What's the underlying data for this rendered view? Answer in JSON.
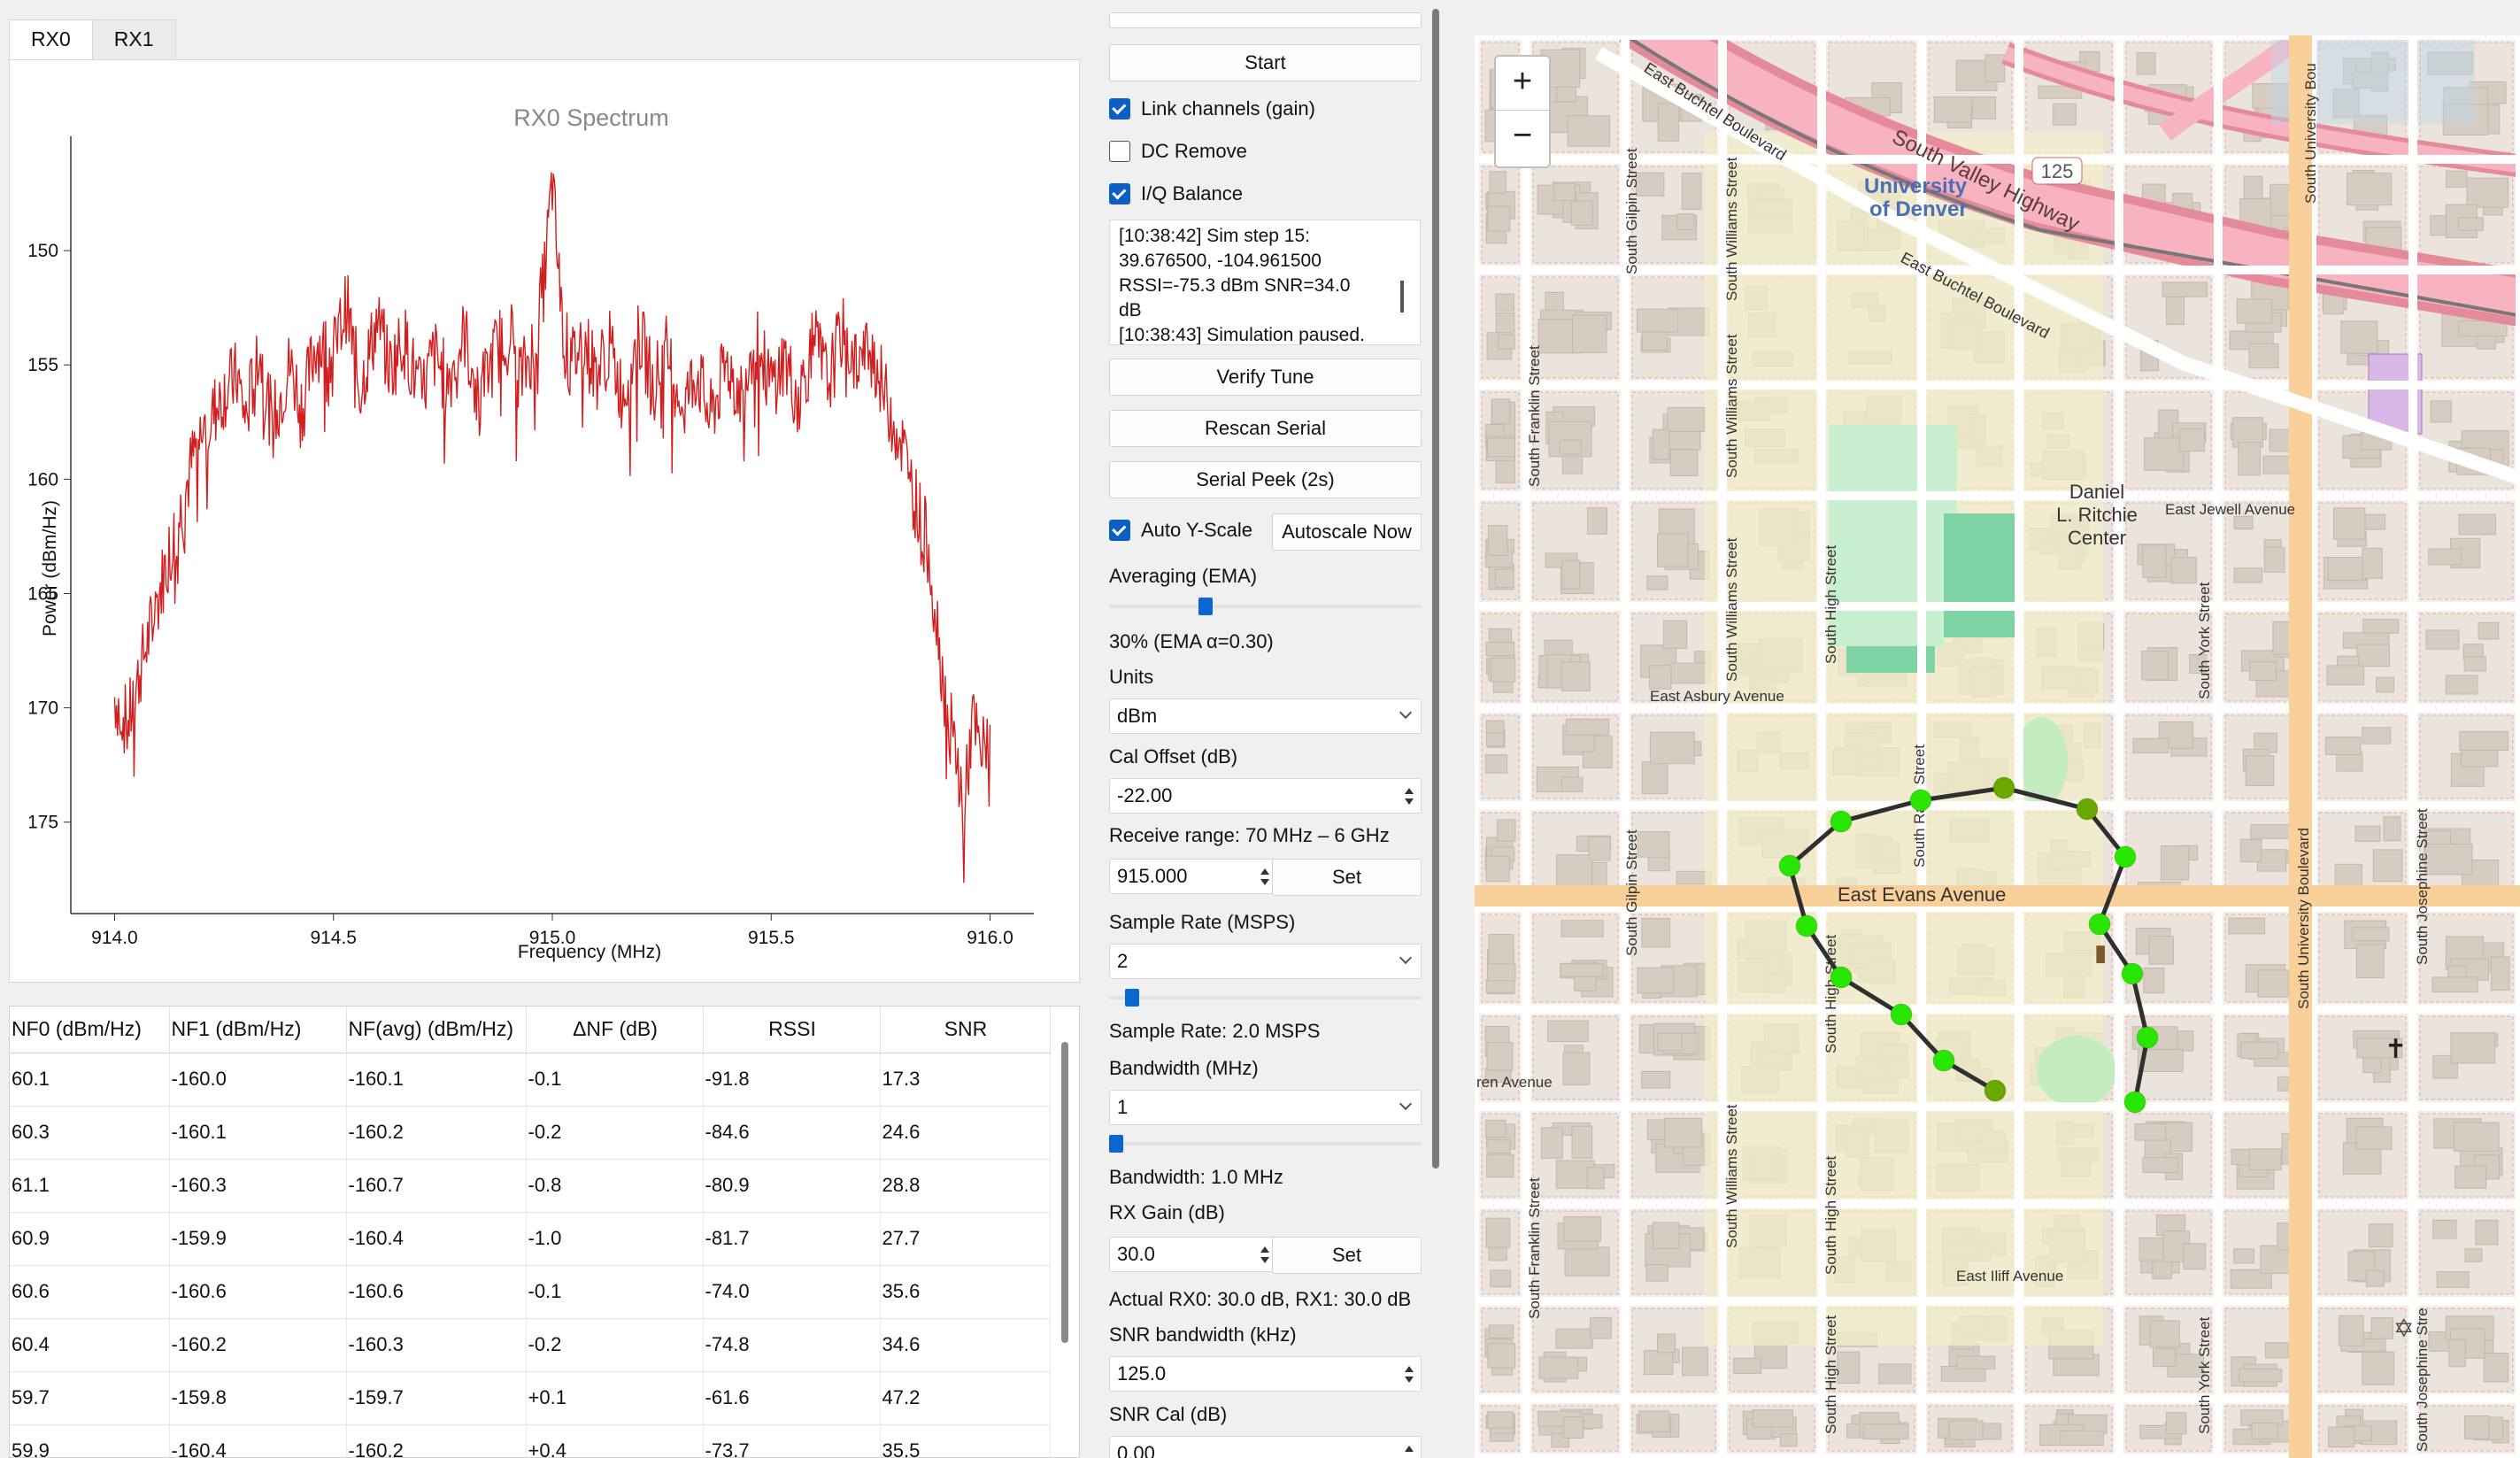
{
  "tabs": [
    "RX0",
    "RX1"
  ],
  "chart_data": {
    "type": "line",
    "title": "RX0 Spectrum",
    "xlabel": "Frequency (MHz)",
    "ylabel": "Power (dBm/Hz)",
    "xlim": [
      913.9,
      916.1
    ],
    "ylim": [
      -179,
      -145
    ],
    "xticks": [
      "914.0",
      "914.5",
      "915.0",
      "915.5",
      "916.0"
    ],
    "yticks": [
      "-150",
      "-155",
      "-160",
      "-165",
      "-170",
      "-175"
    ],
    "series": [
      {
        "color": "#d11f1f",
        "x": [
          914.0,
          914.03,
          914.06,
          914.09,
          914.12,
          914.15,
          914.18,
          914.2,
          914.22,
          914.25,
          914.28,
          914.3,
          914.33,
          914.36,
          914.4,
          914.43,
          914.46,
          914.5,
          914.53,
          914.56,
          914.6,
          914.63,
          914.66,
          914.7,
          914.73,
          914.76,
          914.8,
          914.83,
          914.86,
          914.9,
          914.93,
          914.96,
          914.98,
          915.0,
          915.02,
          915.04,
          915.07,
          915.1,
          915.13,
          915.16,
          915.2,
          915.23,
          915.26,
          915.3,
          915.33,
          915.36,
          915.4,
          915.43,
          915.46,
          915.5,
          915.53,
          915.56,
          915.6,
          915.63,
          915.66,
          915.7,
          915.73,
          915.76,
          915.8,
          915.83,
          915.86,
          915.88,
          915.9,
          915.92,
          915.94,
          915.96,
          915.98,
          916.0
        ],
        "y": [
          -169.5,
          -170.8,
          -168.2,
          -166.0,
          -163.5,
          -161.5,
          -159.0,
          -158.0,
          -157.3,
          -156.2,
          -155.5,
          -157.4,
          -154.2,
          -157.6,
          -155.0,
          -156.8,
          -154.0,
          -154.6,
          -152.3,
          -156.1,
          -153.1,
          -155.2,
          -153.8,
          -156.4,
          -154.5,
          -155.8,
          -153.6,
          -156.7,
          -154.9,
          -153.2,
          -155.6,
          -153.9,
          -151.5,
          -147.0,
          -152.7,
          -155.1,
          -153.8,
          -155.4,
          -154.2,
          -156.3,
          -153.7,
          -155.9,
          -154.4,
          -156.8,
          -155.2,
          -157.4,
          -154.9,
          -156.3,
          -153.8,
          -155.9,
          -154.7,
          -156.5,
          -154.0,
          -155.8,
          -153.6,
          -155.0,
          -154.3,
          -156.4,
          -158.5,
          -161.0,
          -163.0,
          -166.5,
          -170.0,
          -171.8,
          -174.6,
          -170.5,
          -172.3,
          -170.5
        ]
      }
    ]
  },
  "table": {
    "headers": [
      "NF0 (dBm/Hz)",
      "NF1 (dBm/Hz)",
      "NF(avg) (dBm/Hz)",
      "ΔNF (dB)",
      "RSSI",
      "SNR"
    ],
    "rows": [
      [
        "60.1",
        "-160.0",
        "-160.1",
        "-0.1",
        "-91.8",
        "17.3"
      ],
      [
        "60.3",
        "-160.1",
        "-160.2",
        "-0.2",
        "-84.6",
        "24.6"
      ],
      [
        "61.1",
        "-160.3",
        "-160.7",
        "-0.8",
        "-80.9",
        "28.8"
      ],
      [
        "60.9",
        "-159.9",
        "-160.4",
        "-1.0",
        "-81.7",
        "27.7"
      ],
      [
        "60.6",
        "-160.6",
        "-160.6",
        "-0.1",
        "-74.0",
        "35.6"
      ],
      [
        "60.4",
        "-160.2",
        "-160.3",
        "-0.2",
        "-74.8",
        "34.6"
      ],
      [
        "59.7",
        "-159.8",
        "-159.7",
        "+0.1",
        "-61.6",
        "47.2"
      ],
      [
        "59.9",
        "-160.4",
        "-160.2",
        "+0.4",
        "-73.7",
        "35.5"
      ]
    ]
  },
  "controls": {
    "start": "Start",
    "link_channels": "Link channels (gain)",
    "dc_remove": "DC Remove",
    "iq_balance": "I/Q Balance",
    "log": [
      "[10:38:42] Sim step 15:",
      "39.676500, -104.961500",
      "RSSI=-75.3 dBm  SNR=34.0",
      "dB",
      "[10:38:43] Simulation paused."
    ],
    "verify_tune": "Verify Tune",
    "rescan_serial": "Rescan Serial",
    "serial_peek": "Serial Peek (2s)",
    "auto_yscale": "Auto Y-Scale",
    "autoscale_now": "Autoscale Now",
    "averaging_label": "Averaging (EMA)",
    "averaging_value": "30% (EMA α=0.30)",
    "averaging_fraction": 0.3,
    "units_label": "Units",
    "units_value": "dBm",
    "cal_offset_label": "Cal Offset (dB)",
    "cal_offset_value": "-22.00",
    "receive_range": "Receive range: 70 MHz – 6 GHz",
    "freq_value": "915.000",
    "set": "Set",
    "sample_rate_label": "Sample Rate (MSPS)",
    "sample_rate_value": "2",
    "sample_rate_text": "Sample Rate: 2.0 MSPS",
    "bandwidth_label": "Bandwidth (MHz)",
    "bandwidth_value": "1",
    "bandwidth_text": "Bandwidth: 1.0 MHz",
    "rx_gain_label": "RX Gain (dB)",
    "rx_gain_value": "30.0",
    "actual_gain": "Actual RX0: 30.0 dB, RX1: 30.0 dB",
    "snr_bw_label": "SNR bandwidth (kHz)",
    "snr_bw_value": "125.0",
    "snr_cal_label": "SNR Cal (dB)",
    "snr_cal_value": "0.00"
  },
  "map": {
    "zoom_in": "+",
    "zoom_out": "−",
    "labels": {
      "south_valley_highway": "South Valley Highway",
      "i25": "125",
      "university": "University",
      "of_denver": "of Denver",
      "buchtel1": "East Buchtel Boulevard",
      "buchtel2": "East Buchtel Boulevard",
      "ritchie1": "Daniel",
      "ritchie2": "L. Ritchie",
      "ritchie3": "Center",
      "jewell": "East Jewell Avenue",
      "asbury": "East Asbury Avenue",
      "evans": "East Evans Avenue",
      "iliff": "East Iliff Avenue",
      "ren_ave": "ren Avenue",
      "s_univ_blvd": "South University Boulevard",
      "s_univ_blvd_top": "South University Bou",
      "s_gilpin": "South Gilpin Street",
      "s_gilpin2": "South Gilpin Street",
      "s_williams": "South Williams Street",
      "s_williams2": "South Williams Street",
      "s_williams3": "South Williams Street",
      "s_williams4": "South Williams Street",
      "s_franklin": "South Franklin Street",
      "s_franklin2": "South Franklin Street",
      "s_high": "South High Street",
      "s_high2": "South High Street",
      "s_high3": "South High Street",
      "s_high4": "South High Street",
      "s_race": "South Race Street",
      "s_york": "South York Street",
      "s_york2": "South York Street",
      "s_josephine": "South Josephine Street",
      "s_josephine2": "South Josephine Stre"
    },
    "route_color": "#2f2f2f",
    "point_color": "#29e600",
    "point_color_dim": "#6aa800"
  }
}
